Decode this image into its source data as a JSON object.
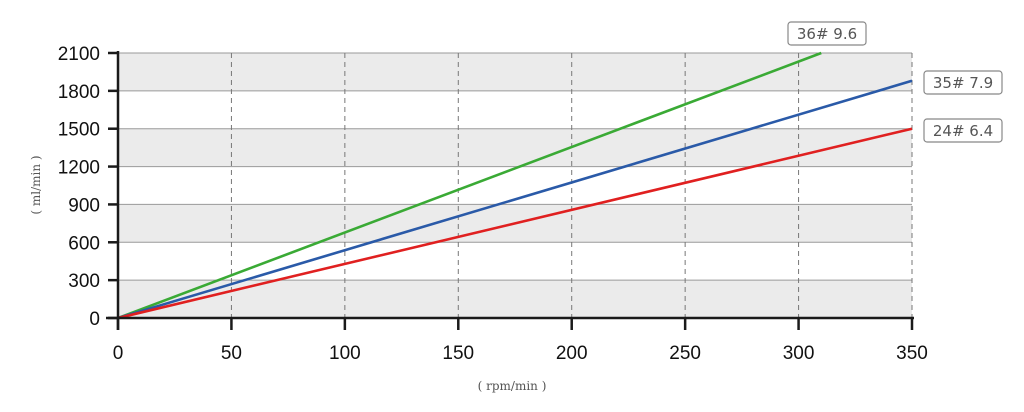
{
  "chart_data": {
    "type": "line",
    "title": "",
    "xlabel": "( rpm/min )",
    "ylabel": "( ml/min )",
    "xlim": [
      0,
      350
    ],
    "ylim": [
      0,
      2100
    ],
    "x_ticks": [
      "0",
      "50",
      "100",
      "150",
      "200",
      "250",
      "300",
      "350"
    ],
    "y_ticks": [
      "0",
      "300",
      "600",
      "900",
      "1200",
      "1500",
      "1800",
      "2100"
    ],
    "grid": {
      "x": "dashed vertical",
      "y": "solid horizontal with alternating gray bands"
    },
    "series": [
      {
        "name": "36# 9.6",
        "color": "#3aaa35",
        "x": [
          0,
          310
        ],
        "y": [
          0,
          2100
        ]
      },
      {
        "name": "35# 7.9",
        "color": "#2a5aa8",
        "x": [
          0,
          350
        ],
        "y": [
          0,
          1880
        ]
      },
      {
        "name": "24# 6.4",
        "color": "#e02020",
        "x": [
          0,
          350
        ],
        "y": [
          0,
          1500
        ]
      }
    ],
    "legend_position": "inline labels at line ends"
  }
}
